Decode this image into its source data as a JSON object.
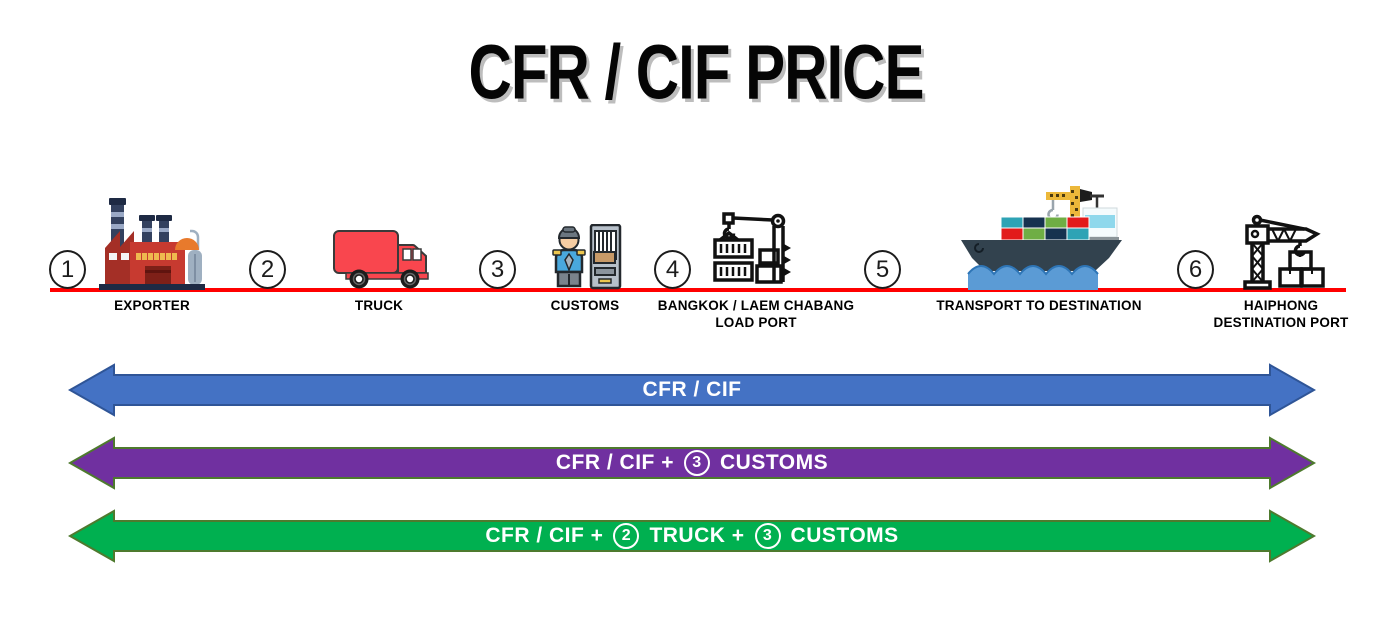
{
  "title": "CFR / CIF PRICE",
  "timeline": {
    "axis_color": "#FF0000",
    "steps": [
      {
        "number": "1",
        "icon": "factory-icon",
        "label_lines": [
          "EXPORTER"
        ]
      },
      {
        "number": "2",
        "icon": "truck-icon",
        "label_lines": [
          "TRUCK"
        ]
      },
      {
        "number": "3",
        "icon": "customs-officer-icon",
        "label_lines": [
          "CUSTOMS"
        ]
      },
      {
        "number": "4",
        "icon": "container-crane-icon",
        "label_lines": [
          "BANGKOK / LAEM CHABANG",
          "LOAD PORT"
        ]
      },
      {
        "number": "5",
        "icon": "container-ship-icon",
        "label_lines": [
          "TRANSPORT TO DESTINATION"
        ]
      },
      {
        "number": "6",
        "icon": "tower-crane-icon",
        "label_lines": [
          "HAIPHONG",
          "DESTINATION PORT"
        ]
      }
    ]
  },
  "price_bars": [
    {
      "id": "cfr-cif",
      "fill": "#4472C4",
      "stroke": "#2F5597",
      "parts": [
        {
          "type": "text",
          "value": "CFR / CIF"
        }
      ]
    },
    {
      "id": "cfr-cif-customs",
      "fill": "#7030A0",
      "stroke": "#4E7A2E",
      "parts": [
        {
          "type": "text",
          "value": "CFR / CIF +"
        },
        {
          "type": "badge",
          "value": "3"
        },
        {
          "type": "text",
          "value": "CUSTOMS"
        }
      ]
    },
    {
      "id": "cfr-cif-truck-customs",
      "fill": "#00B050",
      "stroke": "#4E7A2E",
      "parts": [
        {
          "type": "text",
          "value": "CFR / CIF +"
        },
        {
          "type": "badge",
          "value": "2"
        },
        {
          "type": "text",
          "value": "TRUCK +"
        },
        {
          "type": "badge",
          "value": "3"
        },
        {
          "type": "text",
          "value": "CUSTOMS"
        }
      ]
    }
  ]
}
